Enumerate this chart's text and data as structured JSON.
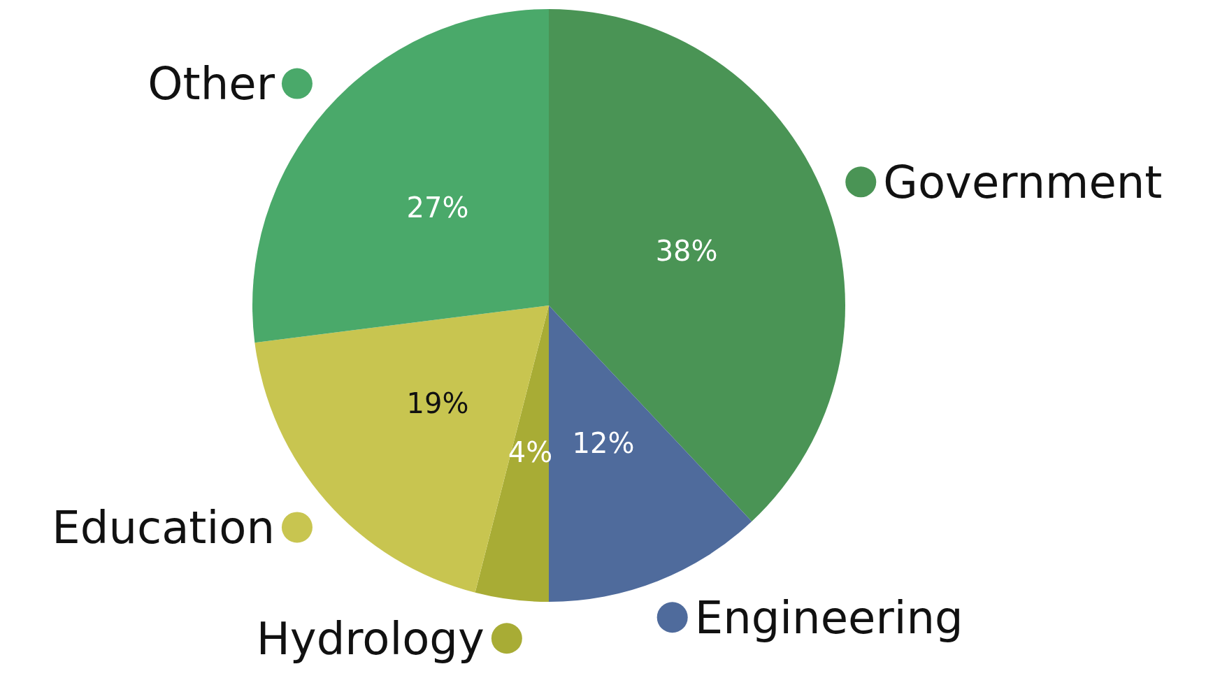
{
  "chart_data": {
    "type": "pie",
    "categories": [
      "Government",
      "Engineering",
      "Hydrology",
      "Education",
      "Other"
    ],
    "values": [
      38,
      12,
      4,
      19,
      27
    ],
    "colors": [
      "#4a9455",
      "#4f6b9c",
      "#a8ac35",
      "#c8c550",
      "#4aa96a"
    ],
    "value_labels": [
      "38%",
      "12%",
      "4%",
      "19%",
      "27%"
    ],
    "legend": "left"
  }
}
